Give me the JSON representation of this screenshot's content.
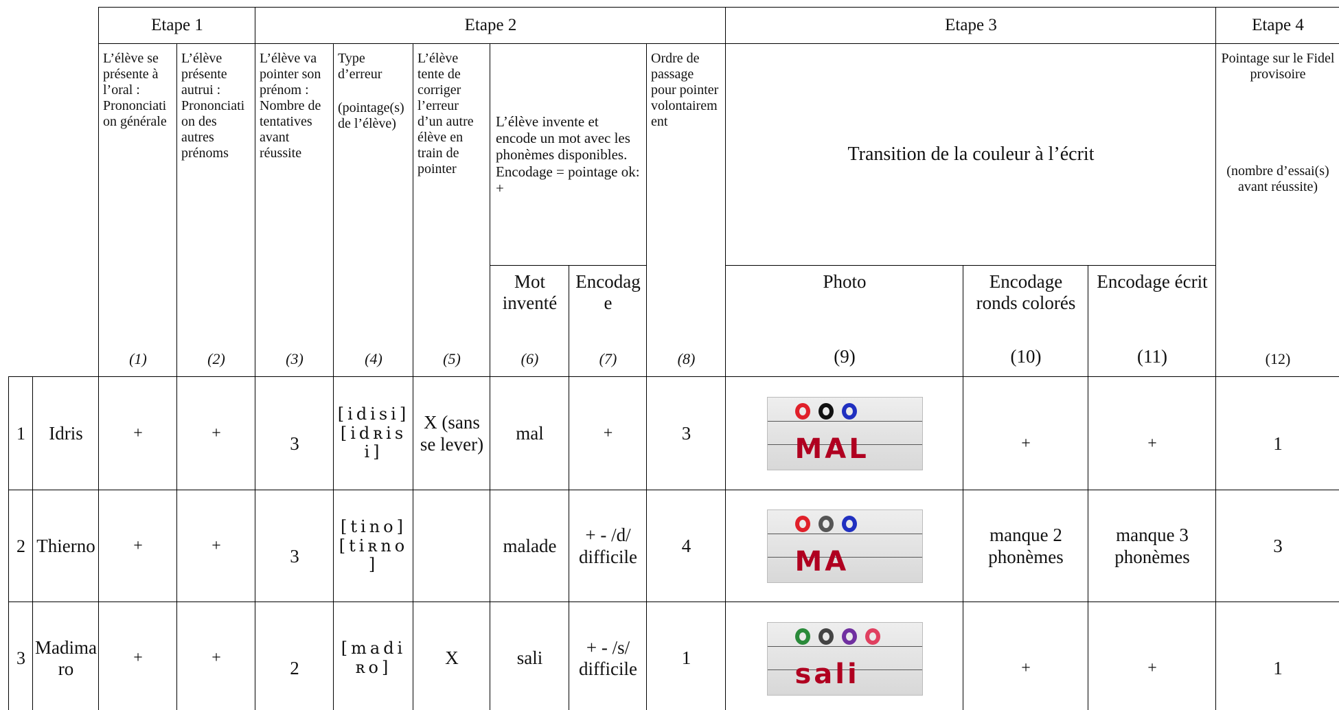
{
  "header": {
    "stages": [
      "Etape 1",
      "Etape 2",
      "Etape 3",
      "Etape 4"
    ]
  },
  "group_6_7": {
    "text": "L’élève invente et encode un mot avec les phonèmes disponibles. Encodage = pointage ok: +"
  },
  "group_9_11": {
    "text": "Transition de la couleur à l’écrit"
  },
  "columns": [
    {
      "text": "L’élève se présente à l’oral : Prononciation générale",
      "number": "(1)"
    },
    {
      "text": "L’élève présente autrui : Prononciation des autres prénoms",
      "number": "(2)"
    },
    {
      "text": "L’élève va pointer son prénom : Nombre de tentatives avant réussite",
      "number": "(3)"
    },
    {
      "text": "Type d’erreur",
      "note": "(pointage(s) de l’élève)",
      "number": "(4)"
    },
    {
      "text": "L’élève tente de corriger l’erreur d’un autre élève en train de pointer",
      "number": "(5)"
    },
    {
      "text": "Mot inventé",
      "number": "(6)"
    },
    {
      "text": "Encodage",
      "number": "(7)"
    },
    {
      "text": "Ordre de passage pour pointer volontairement",
      "number": "(8)"
    },
    {
      "text": "Photo",
      "number": "(9)"
    },
    {
      "text": "Encodage ronds colorés",
      "number": "(10)"
    },
    {
      "text": "Encodage écrit",
      "number": "(11)"
    },
    {
      "text": "Pointage sur le Fidel provisoire",
      "note": "(nombre d’essai(s) avant réussite)",
      "number": "(12)"
    }
  ],
  "rows": [
    {
      "number": "1",
      "name": "Idris",
      "cells": [
        "+",
        "+",
        "3",
        "[idisi] [idʀisi]",
        "X (sans se lever)",
        "mal",
        "+",
        "3",
        {
          "text": "MAL"
        },
        "+",
        "+",
        "1"
      ]
    },
    {
      "number": "2",
      "name": "Thierno",
      "cells": [
        "+",
        "+",
        "3",
        "[tino] [tiʀno]",
        null,
        "malade",
        "+ - /d/ difficile",
        "4",
        {
          "text": "MA"
        },
        "manque 2 phonèmes",
        "manque 3 phonèmes",
        "3"
      ]
    },
    {
      "number": "3",
      "name": "Madimaro",
      "cells": [
        "+",
        "+",
        "2",
        "[madiʀo]",
        "X",
        "sali",
        "+ - /s/ difficile",
        "1",
        {
          "text": "sali"
        },
        "+",
        "+",
        "1"
      ]
    }
  ]
}
